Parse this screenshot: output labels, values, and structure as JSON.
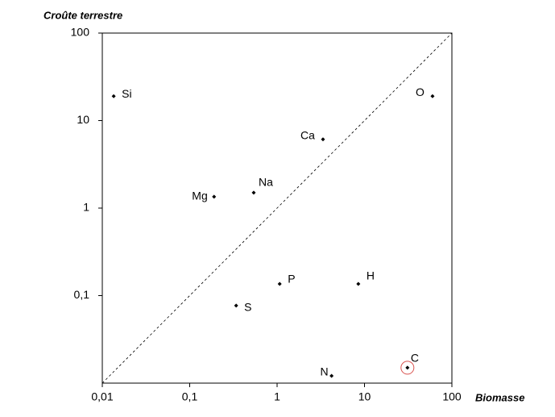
{
  "chart_data": {
    "type": "scatter",
    "y_label": "Croûte terrestre",
    "x_label": "Biomasse",
    "x_log": true,
    "y_log": true,
    "diagonal": true,
    "xlim": [
      0.01,
      100
    ],
    "ylim": [
      0.01,
      100
    ],
    "xticks": [
      {
        "value": 0.01,
        "label": "0,01"
      },
      {
        "value": 0.1,
        "label": "0,1"
      },
      1,
      10,
      100
    ],
    "yticks": [
      {
        "value": 0.1,
        "label": "0,1"
      },
      1,
      10,
      100
    ],
    "labels": [
      "Si",
      "O",
      "Ca",
      "Na",
      "Mg",
      "P",
      "H",
      "S",
      "N",
      "C"
    ],
    "x": [
      0.0135,
      60,
      3.35,
      0.54,
      0.19,
      1.07,
      8.5,
      0.34,
      4.2,
      31
    ],
    "y": [
      19,
      19,
      6.1,
      1.5,
      1.35,
      0.136,
      0.136,
      0.077,
      0.0121,
      0.015
    ],
    "color": "#000000",
    "highlight": "C",
    "highlight_color": "#d9534f"
  }
}
